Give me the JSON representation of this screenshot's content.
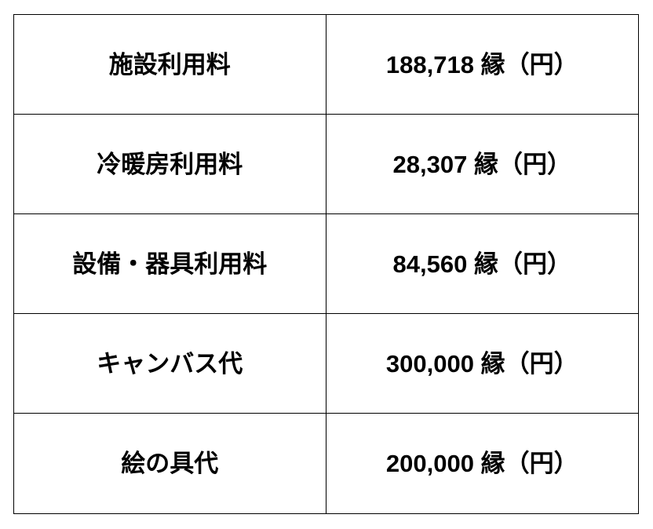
{
  "table": {
    "description_rows": [
      {
        "label": "施設利用料",
        "value": "188,718 縁（円）"
      },
      {
        "label": "冷暖房利用料",
        "value": "28,307 縁（円）"
      },
      {
        "label": "設備・器具利用料",
        "value": "84,560 縁（円）"
      },
      {
        "label": "キャンバス代",
        "value": "300,000 縁（円）"
      },
      {
        "label": "絵の具代",
        "value": "200,000 縁（円）"
      }
    ],
    "colors": {
      "border": "#000000",
      "text": "#000000",
      "background": "#ffffff"
    }
  }
}
